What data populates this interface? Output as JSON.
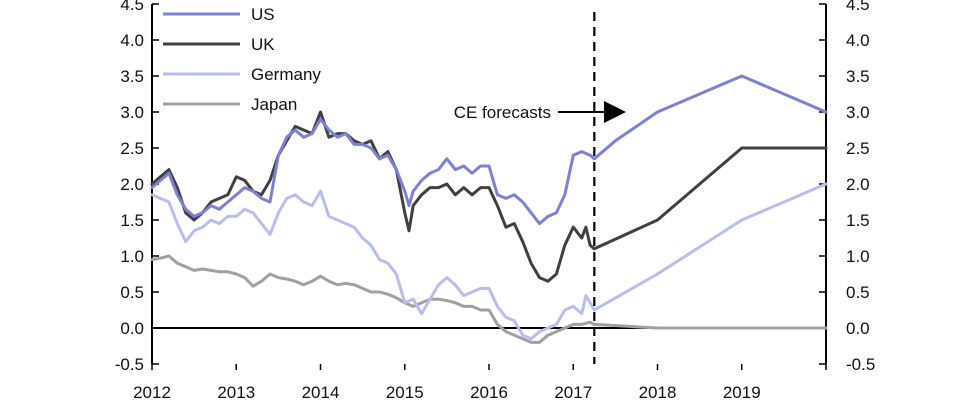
{
  "chart_data": {
    "type": "line",
    "title": "",
    "xlabel": "",
    "ylabel": "",
    "ylim": [
      -0.5,
      4.5
    ],
    "y_ticks": [
      "-0.5",
      "0.0",
      "0.5",
      "1.0",
      "1.5",
      "2.0",
      "2.5",
      "3.0",
      "3.5",
      "4.0",
      "4.5"
    ],
    "x_ticks": [
      "2012",
      "2013",
      "2014",
      "2015",
      "2016",
      "2017",
      "2018",
      "2019"
    ],
    "xlim": [
      2012.0,
      2020.0
    ],
    "secondary_y_axis": true,
    "grid": false,
    "legend_position": "top-left",
    "forecast_marker": {
      "x": 2017.25,
      "label": "CE forecasts"
    },
    "series": [
      {
        "name": "US",
        "color": "#7b82d6",
        "points": [
          [
            2012.0,
            1.95
          ],
          [
            2012.1,
            2.05
          ],
          [
            2012.2,
            2.15
          ],
          [
            2012.3,
            1.85
          ],
          [
            2012.4,
            1.65
          ],
          [
            2012.5,
            1.55
          ],
          [
            2012.6,
            1.6
          ],
          [
            2012.7,
            1.7
          ],
          [
            2012.8,
            1.65
          ],
          [
            2012.9,
            1.75
          ],
          [
            2013.0,
            1.85
          ],
          [
            2013.1,
            1.95
          ],
          [
            2013.2,
            1.9
          ],
          [
            2013.3,
            1.8
          ],
          [
            2013.4,
            1.75
          ],
          [
            2013.5,
            2.4
          ],
          [
            2013.6,
            2.65
          ],
          [
            2013.7,
            2.75
          ],
          [
            2013.8,
            2.65
          ],
          [
            2013.9,
            2.7
          ],
          [
            2014.0,
            2.9
          ],
          [
            2014.1,
            2.75
          ],
          [
            2014.2,
            2.65
          ],
          [
            2014.3,
            2.7
          ],
          [
            2014.4,
            2.55
          ],
          [
            2014.5,
            2.55
          ],
          [
            2014.6,
            2.5
          ],
          [
            2014.7,
            2.35
          ],
          [
            2014.8,
            2.4
          ],
          [
            2014.9,
            2.2
          ],
          [
            2015.0,
            1.9
          ],
          [
            2015.05,
            1.7
          ],
          [
            2015.1,
            1.9
          ],
          [
            2015.2,
            2.05
          ],
          [
            2015.3,
            2.15
          ],
          [
            2015.4,
            2.2
          ],
          [
            2015.5,
            2.35
          ],
          [
            2015.6,
            2.2
          ],
          [
            2015.7,
            2.25
          ],
          [
            2015.8,
            2.15
          ],
          [
            2015.9,
            2.25
          ],
          [
            2016.0,
            2.25
          ],
          [
            2016.1,
            1.85
          ],
          [
            2016.2,
            1.8
          ],
          [
            2016.3,
            1.85
          ],
          [
            2016.4,
            1.75
          ],
          [
            2016.5,
            1.6
          ],
          [
            2016.6,
            1.45
          ],
          [
            2016.7,
            1.55
          ],
          [
            2016.8,
            1.6
          ],
          [
            2016.9,
            1.85
          ],
          [
            2017.0,
            2.4
          ],
          [
            2017.1,
            2.45
          ],
          [
            2017.2,
            2.4
          ],
          [
            2017.25,
            2.35
          ],
          [
            2017.5,
            2.6
          ],
          [
            2018.0,
            3.0
          ],
          [
            2019.0,
            3.5
          ],
          [
            2020.0,
            3.0
          ]
        ]
      },
      {
        "name": "UK",
        "color": "#404040",
        "points": [
          [
            2012.0,
            2.0
          ],
          [
            2012.1,
            2.1
          ],
          [
            2012.2,
            2.2
          ],
          [
            2012.3,
            1.95
          ],
          [
            2012.4,
            1.6
          ],
          [
            2012.5,
            1.5
          ],
          [
            2012.6,
            1.6
          ],
          [
            2012.7,
            1.75
          ],
          [
            2012.8,
            1.8
          ],
          [
            2012.9,
            1.85
          ],
          [
            2013.0,
            2.1
          ],
          [
            2013.1,
            2.05
          ],
          [
            2013.2,
            1.9
          ],
          [
            2013.3,
            1.85
          ],
          [
            2013.4,
            2.05
          ],
          [
            2013.5,
            2.4
          ],
          [
            2013.6,
            2.6
          ],
          [
            2013.7,
            2.8
          ],
          [
            2013.8,
            2.75
          ],
          [
            2013.9,
            2.7
          ],
          [
            2014.0,
            3.0
          ],
          [
            2014.1,
            2.65
          ],
          [
            2014.2,
            2.7
          ],
          [
            2014.3,
            2.7
          ],
          [
            2014.4,
            2.6
          ],
          [
            2014.5,
            2.55
          ],
          [
            2014.6,
            2.6
          ],
          [
            2014.7,
            2.35
          ],
          [
            2014.8,
            2.45
          ],
          [
            2014.9,
            2.2
          ],
          [
            2015.0,
            1.6
          ],
          [
            2015.05,
            1.35
          ],
          [
            2015.1,
            1.7
          ],
          [
            2015.2,
            1.85
          ],
          [
            2015.3,
            1.95
          ],
          [
            2015.4,
            1.95
          ],
          [
            2015.5,
            2.0
          ],
          [
            2015.6,
            1.85
          ],
          [
            2015.7,
            1.95
          ],
          [
            2015.8,
            1.85
          ],
          [
            2015.9,
            1.95
          ],
          [
            2016.0,
            1.95
          ],
          [
            2016.1,
            1.7
          ],
          [
            2016.2,
            1.4
          ],
          [
            2016.3,
            1.45
          ],
          [
            2016.4,
            1.2
          ],
          [
            2016.5,
            0.9
          ],
          [
            2016.6,
            0.7
          ],
          [
            2016.7,
            0.65
          ],
          [
            2016.8,
            0.75
          ],
          [
            2016.9,
            1.15
          ],
          [
            2017.0,
            1.4
          ],
          [
            2017.1,
            1.25
          ],
          [
            2017.15,
            1.4
          ],
          [
            2017.2,
            1.15
          ],
          [
            2017.25,
            1.1
          ],
          [
            2018.0,
            1.5
          ],
          [
            2019.0,
            2.5
          ],
          [
            2020.0,
            2.5
          ]
        ]
      },
      {
        "name": "Germany",
        "color": "#b8bdf0",
        "points": [
          [
            2012.0,
            1.85
          ],
          [
            2012.1,
            1.8
          ],
          [
            2012.2,
            1.75
          ],
          [
            2012.3,
            1.45
          ],
          [
            2012.4,
            1.2
          ],
          [
            2012.5,
            1.35
          ],
          [
            2012.6,
            1.4
          ],
          [
            2012.7,
            1.5
          ],
          [
            2012.8,
            1.45
          ],
          [
            2012.9,
            1.55
          ],
          [
            2013.0,
            1.55
          ],
          [
            2013.1,
            1.65
          ],
          [
            2013.2,
            1.6
          ],
          [
            2013.3,
            1.45
          ],
          [
            2013.4,
            1.3
          ],
          [
            2013.5,
            1.6
          ],
          [
            2013.6,
            1.8
          ],
          [
            2013.7,
            1.85
          ],
          [
            2013.8,
            1.75
          ],
          [
            2013.9,
            1.7
          ],
          [
            2014.0,
            1.9
          ],
          [
            2014.1,
            1.55
          ],
          [
            2014.2,
            1.5
          ],
          [
            2014.3,
            1.45
          ],
          [
            2014.4,
            1.4
          ],
          [
            2014.5,
            1.25
          ],
          [
            2014.6,
            1.15
          ],
          [
            2014.7,
            0.95
          ],
          [
            2014.8,
            0.9
          ],
          [
            2014.9,
            0.75
          ],
          [
            2015.0,
            0.35
          ],
          [
            2015.1,
            0.4
          ],
          [
            2015.2,
            0.2
          ],
          [
            2015.3,
            0.4
          ],
          [
            2015.4,
            0.6
          ],
          [
            2015.5,
            0.7
          ],
          [
            2015.6,
            0.6
          ],
          [
            2015.7,
            0.45
          ],
          [
            2015.8,
            0.5
          ],
          [
            2015.9,
            0.55
          ],
          [
            2016.0,
            0.55
          ],
          [
            2016.1,
            0.3
          ],
          [
            2016.2,
            0.15
          ],
          [
            2016.3,
            0.1
          ],
          [
            2016.4,
            -0.1
          ],
          [
            2016.5,
            -0.15
          ],
          [
            2016.6,
            -0.05
          ],
          [
            2016.7,
            0.0
          ],
          [
            2016.8,
            0.05
          ],
          [
            2016.9,
            0.25
          ],
          [
            2017.0,
            0.3
          ],
          [
            2017.1,
            0.2
          ],
          [
            2017.15,
            0.45
          ],
          [
            2017.2,
            0.35
          ],
          [
            2017.25,
            0.25
          ],
          [
            2018.0,
            0.75
          ],
          [
            2019.0,
            1.5
          ],
          [
            2020.0,
            2.0
          ]
        ]
      },
      {
        "name": "Japan",
        "color": "#a0a0a0",
        "points": [
          [
            2012.0,
            0.95
          ],
          [
            2012.1,
            0.97
          ],
          [
            2012.2,
            1.0
          ],
          [
            2012.3,
            0.9
          ],
          [
            2012.4,
            0.85
          ],
          [
            2012.5,
            0.8
          ],
          [
            2012.6,
            0.82
          ],
          [
            2012.7,
            0.8
          ],
          [
            2012.8,
            0.78
          ],
          [
            2012.9,
            0.78
          ],
          [
            2013.0,
            0.75
          ],
          [
            2013.1,
            0.7
          ],
          [
            2013.2,
            0.58
          ],
          [
            2013.3,
            0.65
          ],
          [
            2013.4,
            0.75
          ],
          [
            2013.5,
            0.7
          ],
          [
            2013.6,
            0.68
          ],
          [
            2013.7,
            0.65
          ],
          [
            2013.8,
            0.6
          ],
          [
            2013.9,
            0.65
          ],
          [
            2014.0,
            0.72
          ],
          [
            2014.1,
            0.65
          ],
          [
            2014.2,
            0.6
          ],
          [
            2014.3,
            0.62
          ],
          [
            2014.4,
            0.6
          ],
          [
            2014.5,
            0.55
          ],
          [
            2014.6,
            0.5
          ],
          [
            2014.7,
            0.5
          ],
          [
            2014.8,
            0.47
          ],
          [
            2014.9,
            0.42
          ],
          [
            2015.0,
            0.35
          ],
          [
            2015.1,
            0.3
          ],
          [
            2015.2,
            0.35
          ],
          [
            2015.3,
            0.4
          ],
          [
            2015.4,
            0.4
          ],
          [
            2015.5,
            0.38
          ],
          [
            2015.6,
            0.35
          ],
          [
            2015.7,
            0.3
          ],
          [
            2015.8,
            0.3
          ],
          [
            2015.9,
            0.25
          ],
          [
            2016.0,
            0.25
          ],
          [
            2016.1,
            0.05
          ],
          [
            2016.2,
            -0.05
          ],
          [
            2016.3,
            -0.1
          ],
          [
            2016.4,
            -0.15
          ],
          [
            2016.5,
            -0.2
          ],
          [
            2016.6,
            -0.2
          ],
          [
            2016.7,
            -0.1
          ],
          [
            2016.8,
            -0.05
          ],
          [
            2016.9,
            0.0
          ],
          [
            2017.0,
            0.05
          ],
          [
            2017.1,
            0.05
          ],
          [
            2017.2,
            0.08
          ],
          [
            2017.25,
            0.05
          ],
          [
            2018.0,
            0.0
          ],
          [
            2019.0,
            0.0
          ],
          [
            2020.0,
            0.0
          ]
        ]
      }
    ]
  }
}
